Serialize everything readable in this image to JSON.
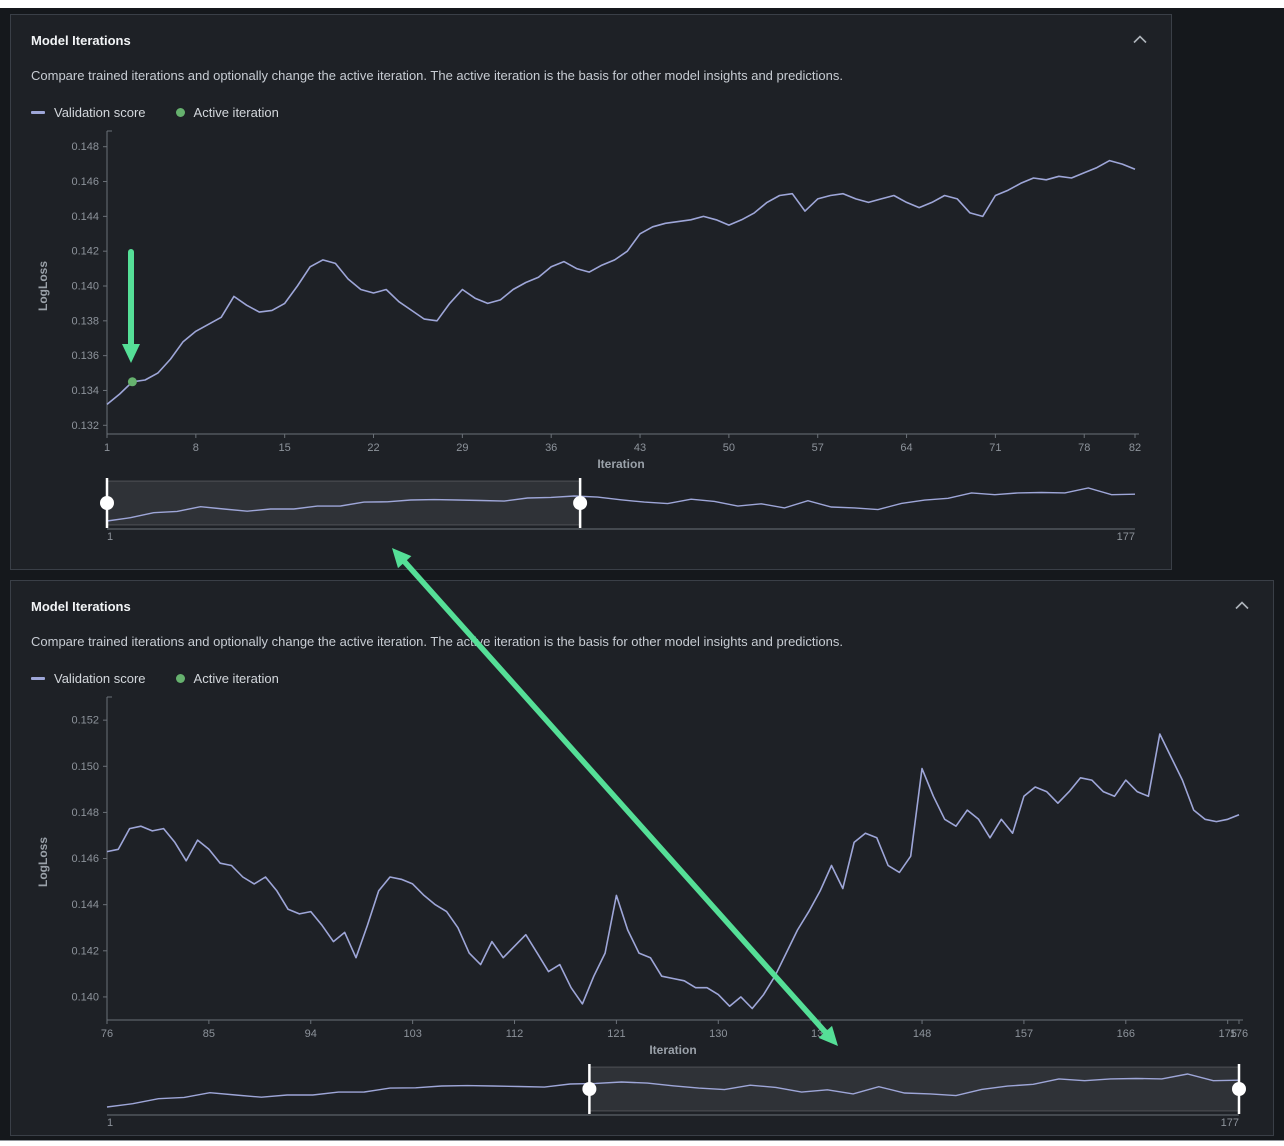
{
  "colors": {
    "accent_green": "#55df97",
    "line": "#9ea6d8",
    "active_dot": "#66b16e",
    "axis": "#6b7178",
    "tick_text": "#8d939b",
    "selection_fill": "rgba(255,255,255,0.08)",
    "selection_stroke": "rgba(255,255,255,0.18)",
    "card_bg": "#1e2126",
    "page_bg": "#15181c"
  },
  "overview": {
    "note": "full 1..177 validation score curve shown in range sliders",
    "values": [
      0.1332,
      0.135,
      0.1378,
      0.1385,
      0.1411,
      0.1398,
      0.1386,
      0.1398,
      0.1398,
      0.1414,
      0.1415,
      0.1436,
      0.1438,
      0.1448,
      0.145,
      0.1448,
      0.1445,
      0.1442,
      0.1459,
      0.1462,
      0.147,
      0.1464,
      0.1449,
      0.1436,
      0.1428,
      0.1452,
      0.144,
      0.1414,
      0.1427,
      0.1404,
      0.1444,
      0.1409,
      0.1404,
      0.1395,
      0.1429,
      0.1447,
      0.1457,
      0.1487,
      0.1477,
      0.1487,
      0.1489,
      0.1487,
      0.1514,
      0.1477,
      0.148
    ]
  },
  "panels": [
    {
      "title": "Model Iterations",
      "description": "Compare trained iterations and optionally change the active iteration. The active iteration is the basis for other model insights and predictions.",
      "legend": {
        "line_label": "Validation score",
        "dot_label": "Active iteration"
      },
      "chart_data": {
        "type": "line",
        "xlabel": "Iteration",
        "ylabel": "LogLoss",
        "xlim": [
          1,
          82
        ],
        "ylim": [
          0.1315,
          0.1485
        ],
        "xticks": [
          1,
          8,
          15,
          22,
          29,
          36,
          43,
          50,
          57,
          64,
          71,
          78,
          82
        ],
        "yticks": [
          0.132,
          0.134,
          0.136,
          0.138,
          0.14,
          0.142,
          0.144,
          0.146,
          0.148
        ],
        "x_start": 1,
        "values": [
          0.1332,
          0.1338,
          0.1345,
          0.1346,
          0.135,
          0.1358,
          0.1368,
          0.1374,
          0.1378,
          0.1382,
          0.1394,
          0.1389,
          0.1385,
          0.1386,
          0.139,
          0.14,
          0.1411,
          0.1415,
          0.1413,
          0.1404,
          0.1398,
          0.1396,
          0.1398,
          0.1391,
          0.1386,
          0.1381,
          0.138,
          0.139,
          0.1398,
          0.1393,
          0.139,
          0.1392,
          0.1398,
          0.1402,
          0.1405,
          0.1411,
          0.1414,
          0.141,
          0.1408,
          0.1412,
          0.1415,
          0.142,
          0.143,
          0.1434,
          0.1436,
          0.1437,
          0.1438,
          0.144,
          0.1438,
          0.1435,
          0.1438,
          0.1442,
          0.1448,
          0.1452,
          0.1453,
          0.1443,
          0.145,
          0.1452,
          0.1453,
          0.145,
          0.1448,
          0.145,
          0.1452,
          0.1448,
          0.1445,
          0.1448,
          0.1452,
          0.145,
          0.1442,
          0.144,
          0.1452,
          0.1455,
          0.1459,
          0.1462,
          0.1461,
          0.1463,
          0.1462,
          0.1465,
          0.1468,
          0.1472,
          0.147,
          0.1467
        ],
        "active_iteration": {
          "x": 3,
          "y": 0.1345
        }
      },
      "slider": {
        "selection": [
          1,
          82
        ],
        "domain": [
          1,
          177
        ],
        "min_label": "1",
        "max_label": "177"
      }
    },
    {
      "title": "Model Iterations",
      "description": "Compare trained iterations and optionally change the active iteration. The active iteration is the basis for other model insights and predictions.",
      "legend": {
        "line_label": "Validation score",
        "dot_label": "Active iteration"
      },
      "chart_data": {
        "type": "line",
        "xlabel": "Iteration",
        "ylabel": "LogLoss",
        "xlim": [
          76,
          176
        ],
        "ylim": [
          0.139,
          0.1527
        ],
        "xticks": [
          76,
          85,
          94,
          103,
          112,
          121,
          130,
          139,
          148,
          157,
          166,
          175,
          176
        ],
        "yticks": [
          0.14,
          0.142,
          0.144,
          0.146,
          0.148,
          0.15,
          0.152
        ],
        "x_start": 76,
        "values": [
          0.1463,
          0.1464,
          0.1473,
          0.1474,
          0.1472,
          0.1473,
          0.1467,
          0.1459,
          0.1468,
          0.1464,
          0.1458,
          0.1457,
          0.1452,
          0.1449,
          0.1452,
          0.1446,
          0.1438,
          0.1436,
          0.1437,
          0.1431,
          0.1424,
          0.1428,
          0.1417,
          0.1431,
          0.1446,
          0.1452,
          0.1451,
          0.1449,
          0.1444,
          0.144,
          0.1437,
          0.143,
          0.1419,
          0.1414,
          0.1424,
          0.1417,
          0.1422,
          0.1427,
          0.1419,
          0.1411,
          0.1414,
          0.1404,
          0.1397,
          0.1409,
          0.1419,
          0.1444,
          0.1429,
          0.1419,
          0.1417,
          0.1409,
          0.1408,
          0.1407,
          0.1404,
          0.1404,
          0.1401,
          0.1396,
          0.14,
          0.1395,
          0.1401,
          0.1409,
          0.1419,
          0.1429,
          0.1437,
          0.1446,
          0.1457,
          0.1447,
          0.1467,
          0.1471,
          0.1469,
          0.1457,
          0.1454,
          0.1461,
          0.1499,
          0.1487,
          0.1477,
          0.1474,
          0.1481,
          0.1477,
          0.1469,
          0.1477,
          0.1471,
          0.1487,
          0.1491,
          0.1489,
          0.1484,
          0.1489,
          0.1495,
          0.1494,
          0.1489,
          0.1487,
          0.1494,
          0.1489,
          0.1487,
          0.1514,
          0.1504,
          0.1494,
          0.1481,
          0.1477,
          0.1476,
          0.1477,
          0.1479
        ],
        "active_iteration": null
      },
      "slider": {
        "selection": [
          76,
          177
        ],
        "domain": [
          1,
          177
        ],
        "min_label": "1",
        "max_label": "177"
      }
    }
  ]
}
